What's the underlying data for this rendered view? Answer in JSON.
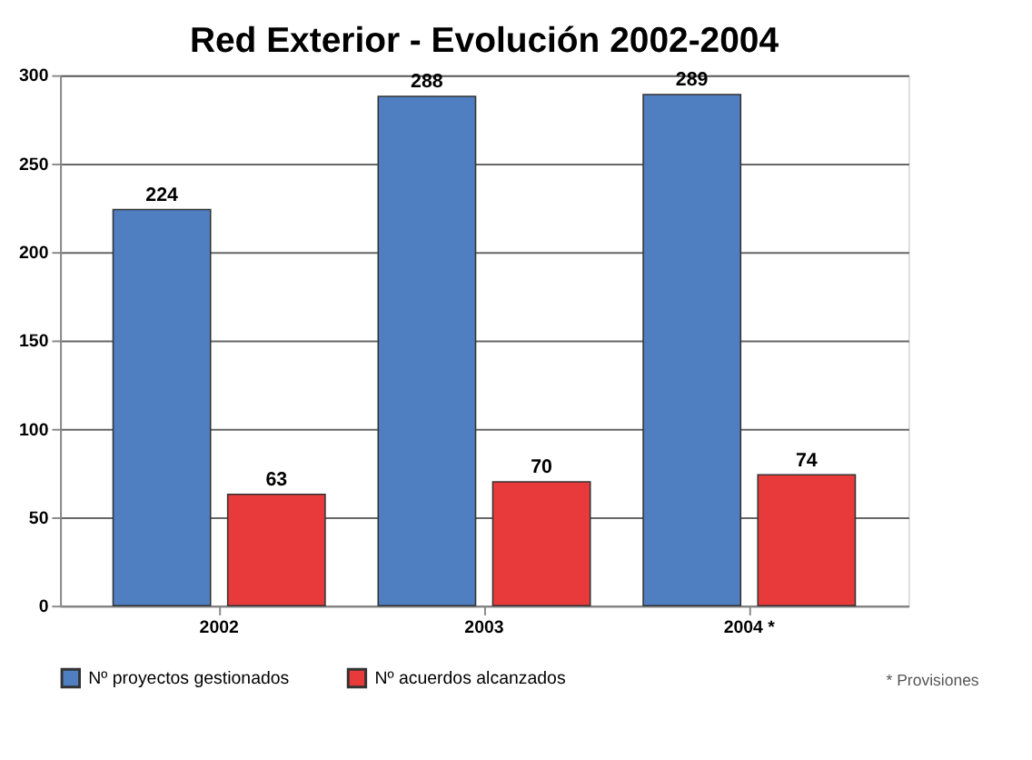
{
  "chart_data": {
    "type": "bar",
    "title": "Red Exterior - Evolución 2002-2004",
    "categories": [
      "2002",
      "2003",
      "2004 *"
    ],
    "series": [
      {
        "name": "Nº proyectos gestionados",
        "color": "#4f7fc0",
        "values": [
          224,
          288,
          289
        ]
      },
      {
        "name": "Nº acuerdos alcanzados",
        "color": "#e83a3a",
        "values": [
          63,
          70,
          74
        ]
      }
    ],
    "ylim": [
      0,
      300
    ],
    "yticks": [
      0,
      50,
      100,
      150,
      200,
      250,
      300
    ],
    "grid": "y",
    "legend": "bottom",
    "data_labels": true,
    "annotations": [
      "* Provisiones"
    ]
  }
}
